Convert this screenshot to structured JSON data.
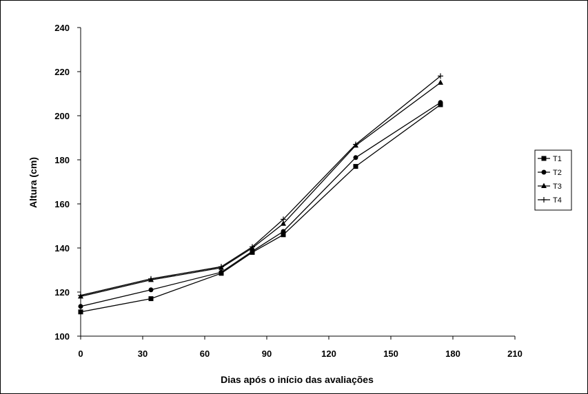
{
  "chart_data": {
    "type": "line",
    "title": "",
    "xlabel": "Dias após o início das avaliações",
    "ylabel": "Altura (cm)",
    "xlim": [
      0,
      210
    ],
    "ylim": [
      100,
      240
    ],
    "xticks": [
      0,
      30,
      60,
      90,
      120,
      150,
      180,
      210
    ],
    "yticks": [
      100,
      120,
      140,
      160,
      180,
      200,
      220,
      240
    ],
    "grid": false,
    "legend_position": "right",
    "x": [
      0,
      34,
      68,
      83,
      98,
      133,
      174
    ],
    "series": [
      {
        "name": "T1",
        "marker": "square",
        "values": [
          111,
          117,
          128.5,
          138,
          146,
          177,
          205
        ]
      },
      {
        "name": "T2",
        "marker": "circle",
        "values": [
          113.5,
          121,
          129,
          138.5,
          147.5,
          181,
          206
        ]
      },
      {
        "name": "T3",
        "marker": "triangle",
        "values": [
          118,
          125.5,
          131,
          140,
          151,
          186.5,
          215
        ]
      },
      {
        "name": "T4",
        "marker": "plus",
        "values": [
          118.5,
          126,
          131.5,
          140.5,
          153,
          187,
          218
        ]
      }
    ],
    "colors": {
      "line": "#000000",
      "axis": "#000000"
    }
  }
}
